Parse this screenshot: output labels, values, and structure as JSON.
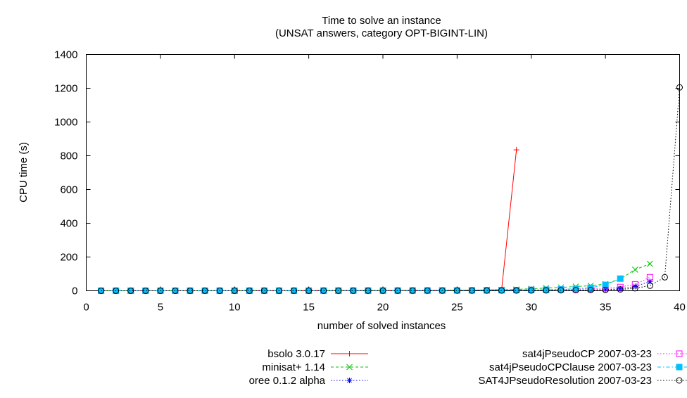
{
  "chart_data": {
    "type": "line",
    "title": "Time to solve an instance",
    "subtitle": "(UNSAT answers, category OPT-BIGINT-LIN)",
    "xlabel": "number of solved instances",
    "ylabel": "CPU time (s)",
    "xlim": [
      0,
      40
    ],
    "ylim": [
      0,
      1400
    ],
    "xticks": [
      "0",
      "5",
      "10",
      "15",
      "20",
      "25",
      "30",
      "35",
      "40"
    ],
    "yticks": [
      "0",
      "200",
      "400",
      "600",
      "800",
      "1000",
      "1200",
      "1400"
    ],
    "grid": false,
    "legend_position": "bottom",
    "series": [
      {
        "name": "bsolo 3.0.17",
        "color": "#ff0000",
        "dash": "solid",
        "marker": "plus",
        "x": [
          1,
          2,
          3,
          4,
          5,
          6,
          7,
          8,
          9,
          10,
          11,
          12,
          13,
          14,
          15,
          16,
          17,
          18,
          19,
          20,
          21,
          22,
          23,
          24,
          25,
          26,
          27,
          28,
          29
        ],
        "y": [
          0.1,
          0.1,
          0.1,
          0.1,
          0.2,
          0.2,
          0.2,
          0.2,
          0.3,
          0.3,
          0.3,
          0.4,
          0.4,
          0.5,
          0.5,
          0.6,
          0.7,
          0.8,
          0.9,
          1.0,
          1.2,
          1.4,
          1.7,
          2.0,
          2.5,
          3.0,
          4.0,
          6.0,
          835
        ]
      },
      {
        "name": "minisat+ 1.14",
        "color": "#00c000",
        "dash": "dashed",
        "marker": "x",
        "x": [
          1,
          2,
          3,
          4,
          5,
          6,
          7,
          8,
          9,
          10,
          11,
          12,
          13,
          14,
          15,
          16,
          17,
          18,
          19,
          20,
          21,
          22,
          23,
          24,
          25,
          26,
          27,
          28,
          29,
          30,
          31,
          32,
          33,
          34,
          35,
          36,
          37,
          38
        ],
        "y": [
          0.1,
          0.1,
          0.1,
          0.1,
          0.1,
          0.1,
          0.2,
          0.2,
          0.2,
          0.2,
          0.3,
          0.3,
          0.3,
          0.4,
          0.4,
          0.5,
          0.6,
          0.7,
          0.8,
          1,
          1,
          2,
          2,
          3,
          3,
          4,
          5,
          6,
          8,
          12,
          16,
          20,
          25,
          30,
          40,
          70,
          125,
          160
        ]
      },
      {
        "name": "oree 0.1.2 alpha",
        "color": "#0000ff",
        "dash": "dotted",
        "marker": "star",
        "x": [
          1,
          2,
          3,
          4,
          5,
          6,
          7,
          8,
          9,
          10,
          11,
          12,
          13,
          14,
          15,
          16,
          17,
          18,
          19,
          20,
          21,
          22,
          23,
          24,
          25,
          26,
          27,
          28,
          29,
          30,
          31,
          32,
          33,
          34,
          35,
          36,
          37,
          38
        ],
        "y": [
          0.1,
          0.1,
          0.1,
          0.1,
          0.1,
          0.1,
          0.1,
          0.1,
          0.1,
          0.2,
          0.2,
          0.2,
          0.2,
          0.2,
          0.3,
          0.3,
          0.3,
          0.4,
          0.4,
          0.5,
          0.5,
          0.6,
          0.6,
          0.7,
          0.8,
          0.9,
          1,
          1.2,
          1.5,
          2,
          2.5,
          3,
          4,
          5,
          7,
          12,
          25,
          55
        ]
      },
      {
        "name": "sat4jPseudoCP 2007-03-23",
        "color": "#ff00ff",
        "dash": "dotted",
        "marker": "square-open",
        "x": [
          1,
          2,
          3,
          4,
          5,
          6,
          7,
          8,
          9,
          10,
          11,
          12,
          13,
          14,
          15,
          16,
          17,
          18,
          19,
          20,
          21,
          22,
          23,
          24,
          25,
          26,
          27,
          28,
          29,
          30,
          31,
          32,
          33,
          34,
          35,
          36,
          37,
          38
        ],
        "y": [
          0.3,
          0.3,
          0.3,
          0.3,
          0.3,
          0.3,
          0.4,
          0.4,
          0.4,
          0.4,
          0.5,
          0.5,
          0.5,
          0.6,
          0.6,
          0.7,
          0.8,
          0.9,
          1,
          1,
          1.2,
          1.4,
          1.6,
          1.8,
          2,
          2.5,
          3,
          3.5,
          4,
          5,
          6,
          8,
          10,
          12,
          15,
          22,
          38,
          80
        ]
      },
      {
        "name": "sat4jPseudoCPClause 2007-03-23",
        "color": "#00c0ff",
        "dash": "dashdot",
        "marker": "square-filled",
        "x": [
          1,
          2,
          3,
          4,
          5,
          6,
          7,
          8,
          9,
          10,
          11,
          12,
          13,
          14,
          15,
          16,
          17,
          18,
          19,
          20,
          21,
          22,
          23,
          24,
          25,
          26,
          27,
          28,
          29,
          30,
          31,
          32,
          33,
          34,
          35,
          36
        ],
        "y": [
          0.3,
          0.3,
          0.3,
          0.3,
          0.3,
          0.3,
          0.4,
          0.4,
          0.4,
          0.4,
          0.5,
          0.5,
          0.5,
          0.6,
          0.6,
          0.7,
          0.8,
          0.9,
          1,
          1,
          1.2,
          1.4,
          1.6,
          1.8,
          2,
          2.5,
          3,
          3.5,
          4,
          5,
          6,
          8,
          12,
          18,
          35,
          72
        ]
      },
      {
        "name": "SAT4JPseudoResolution 2007-03-23",
        "color": "#000000",
        "dash": "dotted",
        "marker": "circle-open",
        "x": [
          1,
          2,
          3,
          4,
          5,
          6,
          7,
          8,
          9,
          10,
          11,
          12,
          13,
          14,
          15,
          16,
          17,
          18,
          19,
          20,
          21,
          22,
          23,
          24,
          25,
          26,
          27,
          28,
          29,
          30,
          31,
          32,
          33,
          34,
          35,
          36,
          37,
          38,
          39,
          40
        ],
        "y": [
          0.2,
          0.2,
          0.2,
          0.2,
          0.2,
          0.2,
          0.2,
          0.3,
          0.3,
          0.3,
          0.3,
          0.3,
          0.4,
          0.4,
          0.4,
          0.5,
          0.5,
          0.6,
          0.6,
          0.7,
          0.7,
          0.8,
          0.9,
          1,
          1.1,
          1.2,
          1.4,
          1.6,
          1.8,
          2,
          2.5,
          3,
          3.5,
          4,
          5,
          8,
          15,
          30,
          80,
          1205
        ]
      }
    ]
  }
}
